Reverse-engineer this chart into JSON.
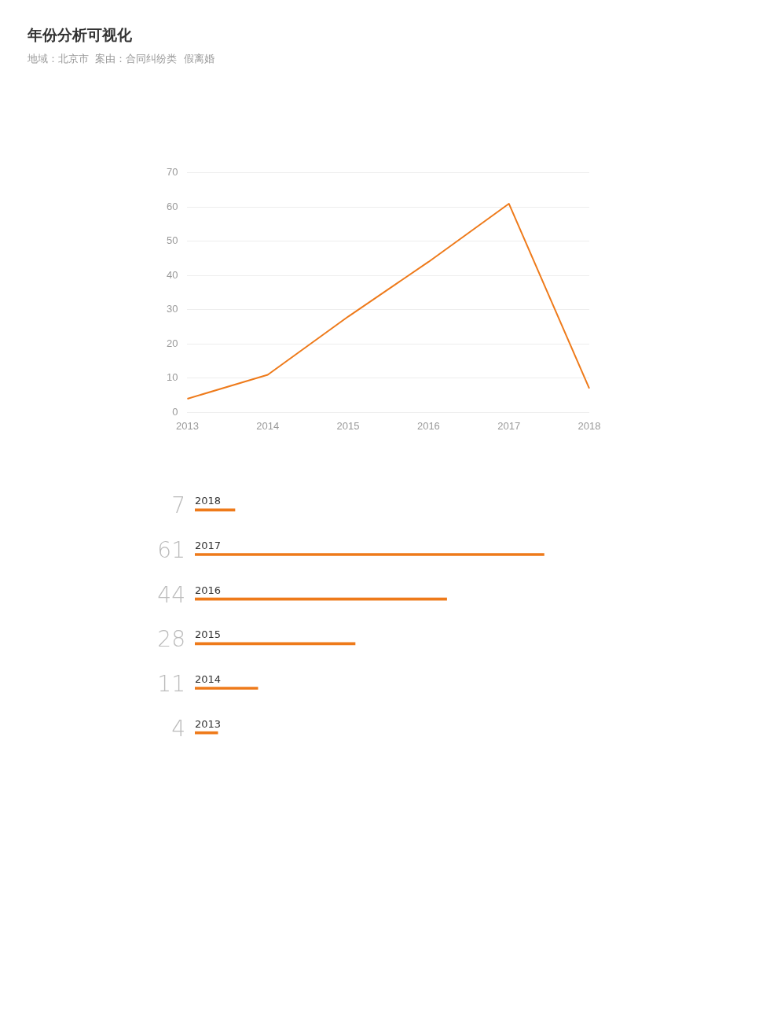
{
  "chart_data": [
    {
      "type": "line",
      "title": "年份分析可视化",
      "subtitle": "地域：北京市  案由：合同纠纷类  假离婚",
      "categories": [
        "2013",
        "2014",
        "2015",
        "2016",
        "2017",
        "2018"
      ],
      "series": [
        {
          "color": "#ee7a1a",
          "values": [
            4,
            11,
            28,
            44,
            61,
            7
          ]
        }
      ],
      "ylim": [
        0,
        70
      ],
      "yticks": [
        0,
        10,
        20,
        30,
        40,
        50,
        60,
        70
      ],
      "grid": "y",
      "legend": false,
      "marker": "none"
    },
    {
      "type": "bar",
      "orientation": "horizontal",
      "categories": [
        "2018",
        "2017",
        "2016",
        "2015",
        "2014",
        "2013"
      ],
      "series": [
        {
          "color": "#ee7a1a",
          "values": [
            7,
            61,
            44,
            28,
            11,
            4
          ]
        }
      ],
      "data_labels": true,
      "tick_labels": "y",
      "legend": false
    }
  ]
}
